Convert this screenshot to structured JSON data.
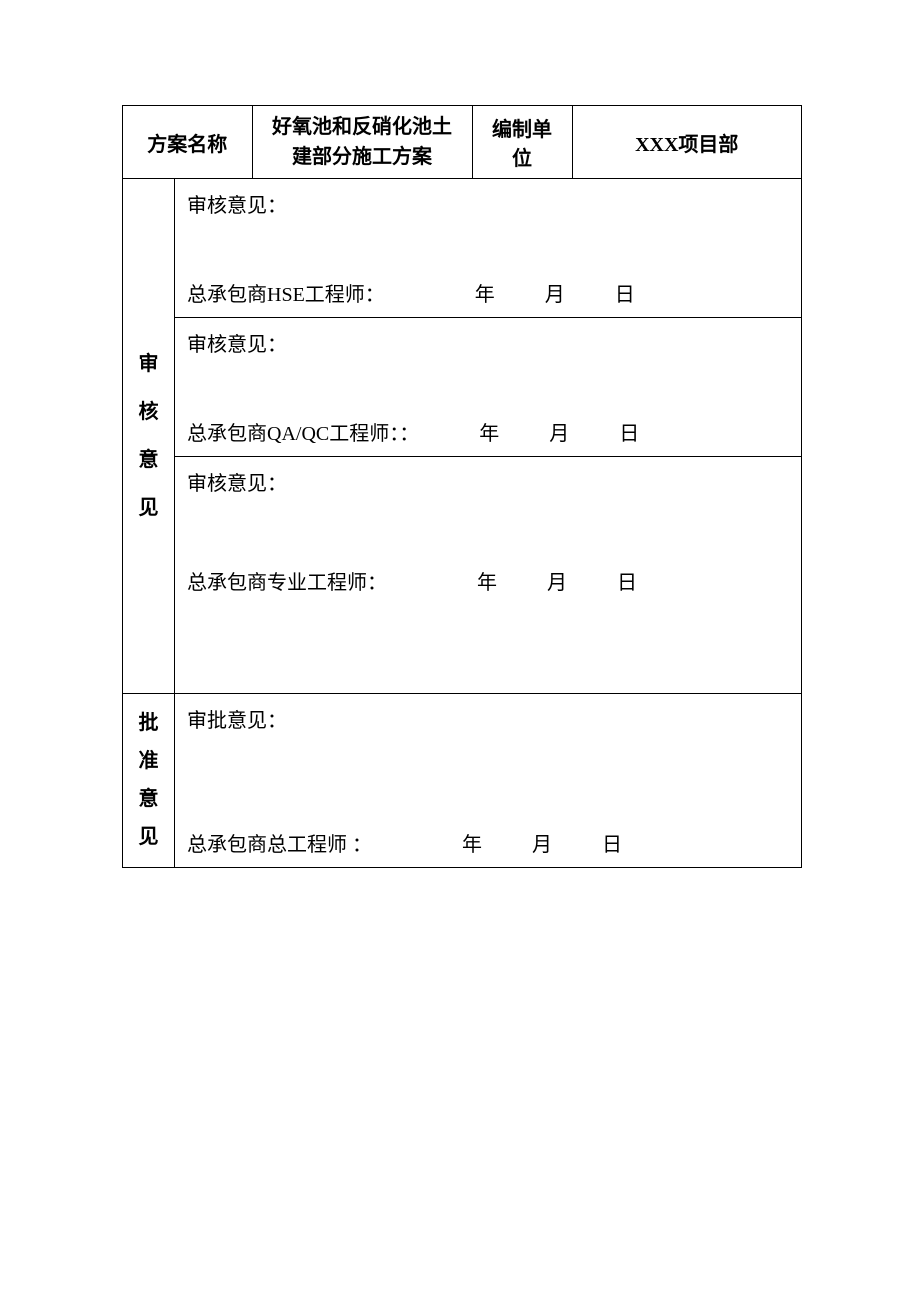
{
  "table": {
    "header": {
      "plan_name_label": "方案名称",
      "plan_name_value": "好氧池和反硝化池土建部分施工方案",
      "unit_label": "编制单位",
      "unit_value": "XXX项目部"
    },
    "review_section": {
      "vertical_chars": [
        "审",
        "核",
        "意",
        "见"
      ],
      "rows": [
        {
          "opinion_label": "审核意见：",
          "signer": "总承包商HSE工程师：",
          "year": "年",
          "month": "月",
          "day": "日"
        },
        {
          "opinion_label": "审核意见：",
          "signer": "总承包商QA/QC工程师：：",
          "year": "年",
          "month": "月",
          "day": "日"
        },
        {
          "opinion_label": "审核意见：",
          "signer": "总承包商专业工程师：",
          "year": "年",
          "month": "月",
          "day": "日"
        }
      ]
    },
    "approval_section": {
      "vertical_chars": [
        "批",
        "准",
        "意",
        "见"
      ],
      "opinion_label": "审批意见：",
      "signer": "总承包商总工程师 ：",
      "year": "年",
      "month": "月",
      "day": "日"
    },
    "colors": {
      "border": "#000000",
      "background": "#ffffff",
      "text": "#000000"
    },
    "typography": {
      "font_family": "SimSun",
      "base_font_size": 20,
      "header_weight": "bold"
    }
  }
}
